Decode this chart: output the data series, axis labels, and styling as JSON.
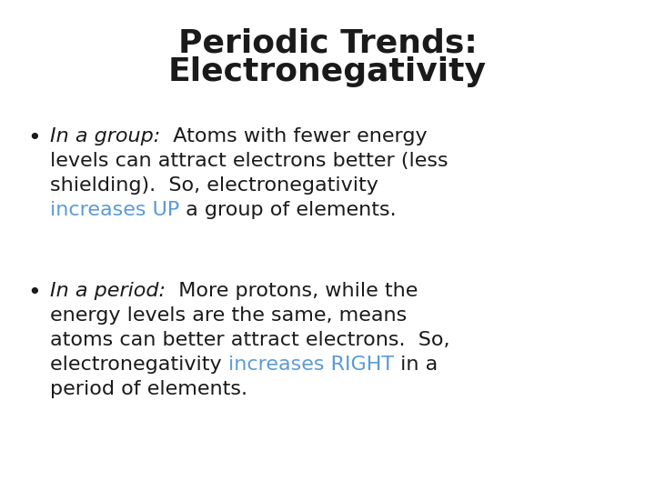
{
  "title_line1": "Periodic Trends:",
  "title_line2": "Electronegativity",
  "title_fontsize": 26,
  "title_color": "#1a1a1a",
  "background_color": "#ffffff",
  "body_fontsize": 16,
  "bullet_color": "#1a1a1a",
  "highlight_color": "#5b9bd5",
  "dark_color": "#1a1a1a",
  "bullet1_line1_italic": "In a group:",
  "bullet1_line1_normal": "  Atoms with fewer energy",
  "bullet1_line2": "levels can attract electrons better (less",
  "bullet1_line3": "shielding).  So, electronegativity",
  "bullet1_line4_blue": "increases UP",
  "bullet1_line4_normal": " a group of elements.",
  "bullet2_line1_italic": "In a period:",
  "bullet2_line1_normal": "  More protons, while the",
  "bullet2_line2": "energy levels are the same, means",
  "bullet2_line3": "atoms can better attract electrons.  So,",
  "bullet2_line4_normal1": "electronegativity ",
  "bullet2_line4_blue": "increases RIGHT",
  "bullet2_line4_normal2": " in a",
  "bullet2_line5": "period of elements."
}
